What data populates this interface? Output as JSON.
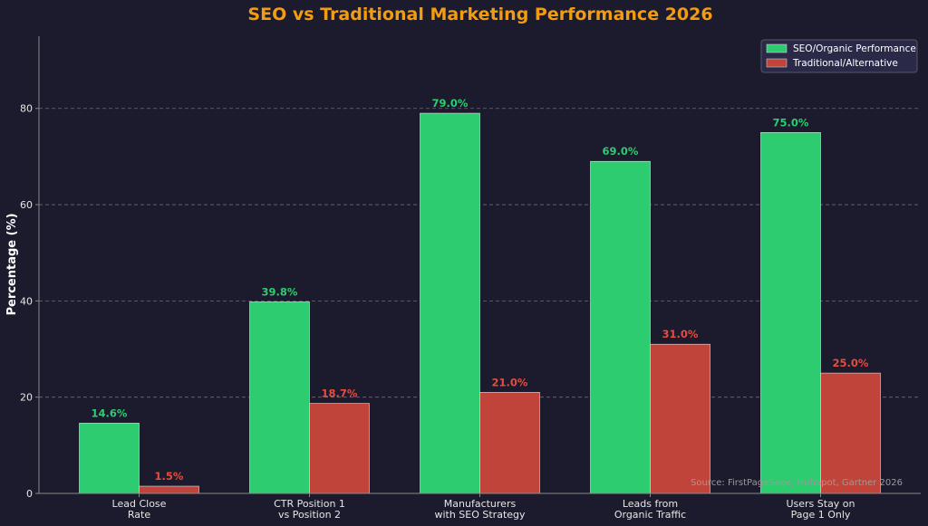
{
  "chart_data": {
    "type": "bar",
    "title": "SEO vs Traditional Marketing Performance 2026",
    "xlabel": "",
    "ylabel": "Percentage (%)",
    "ylim": [
      0,
      95
    ],
    "yticks": [
      0,
      20,
      40,
      60,
      80
    ],
    "grid": true,
    "legend_position": "top-right",
    "categories": [
      [
        "Lead Close",
        "Rate"
      ],
      [
        "CTR Position 1",
        "vs Position 2"
      ],
      [
        "Manufacturers",
        "with SEO Strategy"
      ],
      [
        "Leads from",
        "Organic Traffic"
      ],
      [
        "Users Stay on",
        "Page 1 Only"
      ]
    ],
    "series": [
      {
        "name": "SEO/Organic Performance",
        "color": "#2ecc71",
        "values": [
          14.6,
          39.8,
          79.0,
          69.0,
          75.0
        ]
      },
      {
        "name": "Traditional/Alternative",
        "color": "#c0443a",
        "values": [
          1.5,
          18.7,
          21.0,
          31.0,
          25.0
        ]
      }
    ],
    "label_colors": [
      "#2ecc71",
      "#e74c3c"
    ],
    "value_suffix": "%",
    "annotation": "Source: FirstPageSage, HubSpot, Gartner 2026"
  },
  "theme": {
    "background": "#1b1b2d",
    "title_color": "#f39c12",
    "text_color": "#ffffff",
    "tick_color": "#e6e6e6",
    "grid_color": "#6b6b7b",
    "axis_color": "#888888",
    "legend_bg": "#2a2a48"
  }
}
